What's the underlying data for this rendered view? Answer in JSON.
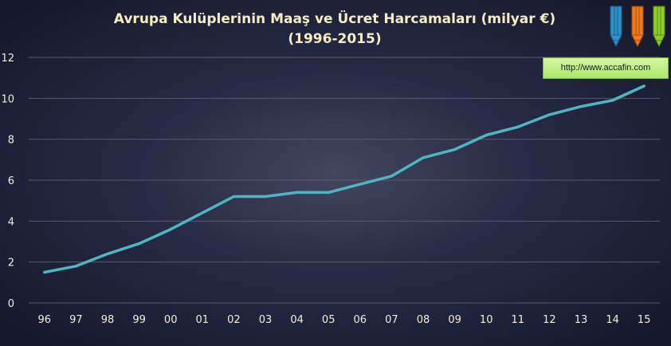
{
  "chart_data": {
    "type": "line",
    "title": "Avrupa Kulüplerinin Maaş ve Ücret Harcamaları (milyar €)",
    "subtitle": "(1996-2015)",
    "xlabel": "",
    "ylabel": "",
    "categories": [
      "96",
      "97",
      "98",
      "99",
      "00",
      "01",
      "02",
      "03",
      "04",
      "05",
      "06",
      "07",
      "08",
      "09",
      "10",
      "11",
      "12",
      "13",
      "14",
      "15"
    ],
    "series": [
      {
        "values": [
          1.5,
          1.8,
          2.4,
          2.9,
          3.6,
          4.4,
          5.2,
          5.2,
          5.4,
          5.4,
          5.8,
          6.2,
          7.1,
          7.5,
          8.2,
          8.6,
          9.2,
          9.6,
          9.9,
          10.6
        ]
      }
    ],
    "ylim": [
      0,
      12
    ],
    "yticks": [
      0,
      2,
      4,
      6,
      8,
      10,
      12
    ],
    "grid": true,
    "legend": "none",
    "colors": {
      "line": "#4fb4c4",
      "title": "#f6ecc2",
      "background": "#262a44"
    }
  },
  "link": {
    "text": "http://www.accafin.com"
  },
  "logo": {
    "icon": "pencils-logo-icon",
    "colors": [
      "#2f8fc8",
      "#f07a1e",
      "#8ccf2a"
    ]
  }
}
